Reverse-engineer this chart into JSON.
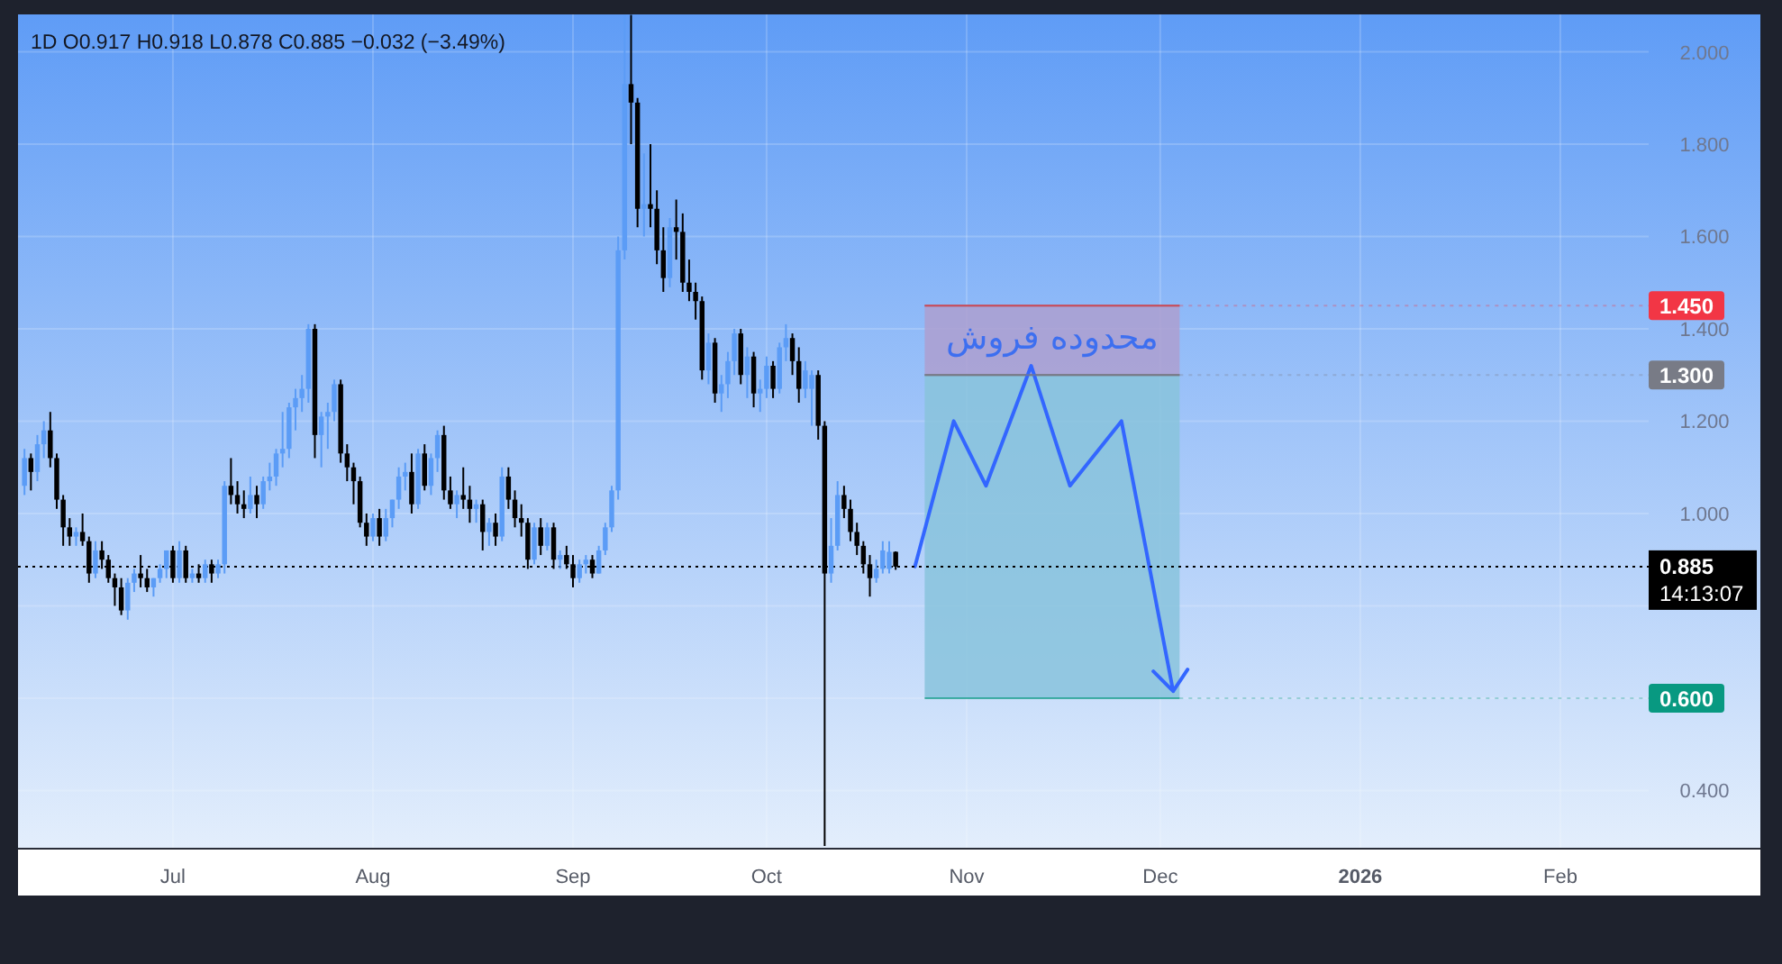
{
  "chart_data": {
    "type": "candlestick",
    "title": "1D  O0.917 H0.918 L0.878 C0.885 −0.032 (−3.49%)",
    "x": [
      "2025-06-08",
      "2025-06-09",
      "2025-06-10",
      "2025-06-11",
      "2025-06-12",
      "2025-06-13",
      "2025-06-14",
      "2025-06-15",
      "2025-06-16",
      "2025-06-17",
      "2025-06-18",
      "2025-06-19",
      "2025-06-20",
      "2025-06-21",
      "2025-06-22",
      "2025-06-23",
      "2025-06-24",
      "2025-06-25",
      "2025-06-26",
      "2025-06-27",
      "2025-06-28",
      "2025-06-29",
      "2025-06-30",
      "2025-07-01",
      "2025-07-02",
      "2025-07-03",
      "2025-07-04",
      "2025-07-05",
      "2025-07-06",
      "2025-07-07",
      "2025-07-08",
      "2025-07-09",
      "2025-07-10",
      "2025-07-11",
      "2025-07-12",
      "2025-07-13",
      "2025-07-14",
      "2025-07-15",
      "2025-07-16",
      "2025-07-17",
      "2025-07-18",
      "2025-07-19",
      "2025-07-20",
      "2025-07-21",
      "2025-07-22",
      "2025-07-23",
      "2025-07-24",
      "2025-07-25",
      "2025-07-26",
      "2025-07-27",
      "2025-07-28",
      "2025-07-29",
      "2025-07-30",
      "2025-07-31",
      "2025-08-01",
      "2025-08-02",
      "2025-08-03",
      "2025-08-04",
      "2025-08-05",
      "2025-08-06",
      "2025-08-07",
      "2025-08-08",
      "2025-08-09",
      "2025-08-10",
      "2025-08-11",
      "2025-08-12",
      "2025-08-13",
      "2025-08-14",
      "2025-08-15",
      "2025-08-16",
      "2025-08-17",
      "2025-08-18",
      "2025-08-19",
      "2025-08-20",
      "2025-08-21",
      "2025-08-22",
      "2025-08-23",
      "2025-08-24",
      "2025-08-25",
      "2025-08-26",
      "2025-08-27",
      "2025-08-28",
      "2025-08-29",
      "2025-08-30",
      "2025-08-31",
      "2025-09-01",
      "2025-09-02",
      "2025-09-03",
      "2025-09-04",
      "2025-09-05",
      "2025-09-06",
      "2025-09-07",
      "2025-09-08",
      "2025-09-09",
      "2025-09-10",
      "2025-09-11",
      "2025-09-12",
      "2025-09-13",
      "2025-09-14",
      "2025-09-15",
      "2025-09-16",
      "2025-09-17",
      "2025-09-18",
      "2025-09-19",
      "2025-09-20",
      "2025-09-21",
      "2025-09-22",
      "2025-09-23",
      "2025-09-24",
      "2025-09-25",
      "2025-09-26",
      "2025-09-27",
      "2025-09-28",
      "2025-09-29",
      "2025-09-30",
      "2025-10-01",
      "2025-10-02",
      "2025-10-03",
      "2025-10-04",
      "2025-10-05",
      "2025-10-06",
      "2025-10-07",
      "2025-10-08",
      "2025-10-09",
      "2025-10-10",
      "2025-10-11",
      "2025-10-12",
      "2025-10-13",
      "2025-10-14",
      "2025-10-15",
      "2025-10-16",
      "2025-10-17",
      "2025-10-18",
      "2025-10-19",
      "2025-10-20",
      "2025-10-21"
    ],
    "ohlc": [
      [
        1.06,
        1.14,
        1.04,
        1.12
      ],
      [
        1.12,
        1.13,
        1.05,
        1.09
      ],
      [
        1.09,
        1.17,
        1.07,
        1.15
      ],
      [
        1.15,
        1.2,
        1.12,
        1.18
      ],
      [
        1.18,
        1.22,
        1.1,
        1.12
      ],
      [
        1.12,
        1.13,
        1.01,
        1.03
      ],
      [
        1.03,
        1.04,
        0.93,
        0.97
      ],
      [
        0.97,
        0.99,
        0.93,
        0.95
      ],
      [
        0.95,
        0.97,
        0.93,
        0.96
      ],
      [
        0.96,
        1.0,
        0.93,
        0.94
      ],
      [
        0.94,
        0.95,
        0.85,
        0.87
      ],
      [
        0.87,
        0.94,
        0.86,
        0.92
      ],
      [
        0.92,
        0.94,
        0.88,
        0.9
      ],
      [
        0.9,
        0.91,
        0.85,
        0.86
      ],
      [
        0.86,
        0.87,
        0.8,
        0.84
      ],
      [
        0.84,
        0.86,
        0.78,
        0.79
      ],
      [
        0.79,
        0.86,
        0.77,
        0.85
      ],
      [
        0.85,
        0.88,
        0.83,
        0.87
      ],
      [
        0.87,
        0.91,
        0.84,
        0.86
      ],
      [
        0.86,
        0.88,
        0.83,
        0.84
      ],
      [
        0.84,
        0.86,
        0.82,
        0.86
      ],
      [
        0.86,
        0.89,
        0.85,
        0.88
      ],
      [
        0.88,
        0.92,
        0.86,
        0.92
      ],
      [
        0.92,
        0.93,
        0.85,
        0.86
      ],
      [
        0.86,
        0.94,
        0.85,
        0.92
      ],
      [
        0.92,
        0.93,
        0.85,
        0.86
      ],
      [
        0.86,
        0.88,
        0.85,
        0.87
      ],
      [
        0.87,
        0.89,
        0.85,
        0.86
      ],
      [
        0.86,
        0.9,
        0.85,
        0.89
      ],
      [
        0.89,
        0.9,
        0.85,
        0.87
      ],
      [
        0.87,
        0.9,
        0.86,
        0.89
      ],
      [
        0.89,
        1.07,
        0.87,
        1.06
      ],
      [
        1.06,
        1.12,
        1.02,
        1.04
      ],
      [
        1.04,
        1.07,
        1.0,
        1.02
      ],
      [
        1.02,
        1.05,
        0.99,
        1.01
      ],
      [
        1.01,
        1.08,
        1.0,
        1.04
      ],
      [
        1.04,
        1.06,
        0.99,
        1.02
      ],
      [
        1.02,
        1.08,
        1.01,
        1.07
      ],
      [
        1.07,
        1.11,
        1.05,
        1.08
      ],
      [
        1.08,
        1.14,
        1.06,
        1.13
      ],
      [
        1.13,
        1.22,
        1.1,
        1.14
      ],
      [
        1.14,
        1.24,
        1.12,
        1.23
      ],
      [
        1.23,
        1.27,
        1.18,
        1.25
      ],
      [
        1.25,
        1.3,
        1.22,
        1.27
      ],
      [
        1.27,
        1.41,
        1.24,
        1.4
      ],
      [
        1.4,
        1.41,
        1.12,
        1.17
      ],
      [
        1.17,
        1.22,
        1.1,
        1.21
      ],
      [
        1.21,
        1.24,
        1.14,
        1.22
      ],
      [
        1.22,
        1.29,
        1.2,
        1.28
      ],
      [
        1.28,
        1.29,
        1.11,
        1.13
      ],
      [
        1.13,
        1.15,
        1.07,
        1.1
      ],
      [
        1.1,
        1.11,
        1.02,
        1.07
      ],
      [
        1.07,
        1.08,
        0.97,
        0.98
      ],
      [
        0.98,
        1.0,
        0.93,
        0.95
      ],
      [
        0.95,
        1.0,
        0.94,
        0.99
      ],
      [
        0.99,
        1.01,
        0.93,
        0.95
      ],
      [
        0.95,
        1.01,
        0.94,
        0.99
      ],
      [
        0.99,
        1.03,
        0.97,
        1.03
      ],
      [
        1.03,
        1.1,
        1.01,
        1.08
      ],
      [
        1.08,
        1.11,
        1.05,
        1.09
      ],
      [
        1.09,
        1.13,
        1.0,
        1.02
      ],
      [
        1.02,
        1.14,
        1.01,
        1.13
      ],
      [
        1.13,
        1.15,
        1.05,
        1.06
      ],
      [
        1.06,
        1.13,
        1.04,
        1.12
      ],
      [
        1.12,
        1.18,
        1.09,
        1.17
      ],
      [
        1.17,
        1.19,
        1.03,
        1.05
      ],
      [
        1.05,
        1.08,
        1.01,
        1.02
      ],
      [
        1.02,
        1.05,
        0.99,
        1.04
      ],
      [
        1.04,
        1.1,
        1.01,
        1.03
      ],
      [
        1.03,
        1.06,
        0.98,
        1.01
      ],
      [
        1.01,
        1.03,
        0.98,
        1.02
      ],
      [
        1.02,
        1.03,
        0.92,
        0.96
      ],
      [
        0.96,
        0.99,
        0.93,
        0.98
      ],
      [
        0.98,
        1.0,
        0.93,
        0.95
      ],
      [
        0.95,
        1.1,
        0.94,
        1.08
      ],
      [
        1.08,
        1.1,
        1.01,
        1.03
      ],
      [
        1.03,
        1.05,
        0.97,
        0.99
      ],
      [
        0.99,
        1.02,
        0.95,
        0.98
      ],
      [
        0.98,
        0.99,
        0.88,
        0.9
      ],
      [
        0.9,
        0.98,
        0.89,
        0.97
      ],
      [
        0.97,
        0.99,
        0.91,
        0.93
      ],
      [
        0.93,
        0.98,
        0.92,
        0.97
      ],
      [
        0.97,
        0.98,
        0.88,
        0.9
      ],
      [
        0.9,
        0.92,
        0.88,
        0.91
      ],
      [
        0.91,
        0.93,
        0.88,
        0.89
      ],
      [
        0.89,
        0.91,
        0.84,
        0.86
      ],
      [
        0.86,
        0.9,
        0.85,
        0.89
      ],
      [
        0.89,
        0.91,
        0.87,
        0.9
      ],
      [
        0.9,
        0.91,
        0.86,
        0.87
      ],
      [
        0.87,
        0.93,
        0.87,
        0.92
      ],
      [
        0.92,
        0.98,
        0.91,
        0.97
      ],
      [
        0.97,
        1.06,
        0.96,
        1.05
      ],
      [
        1.05,
        1.6,
        1.03,
        1.57
      ],
      [
        1.57,
        2.08,
        1.55,
        1.93
      ],
      [
        1.93,
        2.08,
        1.8,
        1.89
      ],
      [
        1.89,
        1.9,
        1.62,
        1.66
      ],
      [
        1.66,
        1.78,
        1.6,
        1.67
      ],
      [
        1.67,
        1.8,
        1.62,
        1.66
      ],
      [
        1.66,
        1.7,
        1.54,
        1.57
      ],
      [
        1.57,
        1.62,
        1.48,
        1.51
      ],
      [
        1.51,
        1.64,
        1.49,
        1.62
      ],
      [
        1.62,
        1.68,
        1.55,
        1.61
      ],
      [
        1.61,
        1.65,
        1.48,
        1.5
      ],
      [
        1.5,
        1.55,
        1.46,
        1.48
      ],
      [
        1.48,
        1.5,
        1.42,
        1.46
      ],
      [
        1.46,
        1.47,
        1.29,
        1.31
      ],
      [
        1.31,
        1.39,
        1.28,
        1.37
      ],
      [
        1.37,
        1.38,
        1.24,
        1.26
      ],
      [
        1.26,
        1.3,
        1.22,
        1.28
      ],
      [
        1.28,
        1.35,
        1.25,
        1.33
      ],
      [
        1.33,
        1.4,
        1.3,
        1.39
      ],
      [
        1.39,
        1.4,
        1.28,
        1.3
      ],
      [
        1.3,
        1.36,
        1.25,
        1.34
      ],
      [
        1.34,
        1.35,
        1.23,
        1.26
      ],
      [
        1.26,
        1.29,
        1.22,
        1.27
      ],
      [
        1.27,
        1.34,
        1.25,
        1.32
      ],
      [
        1.32,
        1.33,
        1.25,
        1.27
      ],
      [
        1.27,
        1.37,
        1.26,
        1.36
      ],
      [
        1.36,
        1.41,
        1.33,
        1.38
      ],
      [
        1.38,
        1.39,
        1.3,
        1.33
      ],
      [
        1.33,
        1.36,
        1.24,
        1.27
      ],
      [
        1.27,
        1.33,
        1.25,
        1.31
      ],
      [
        1.27,
        1.31,
        1.19,
        1.3
      ],
      [
        1.3,
        1.31,
        1.16,
        1.19
      ],
      [
        1.19,
        1.2,
        0.28,
        0.87
      ],
      [
        0.87,
        0.99,
        0.85,
        0.93
      ],
      [
        0.93,
        1.07,
        0.92,
        1.04
      ],
      [
        1.04,
        1.06,
        0.99,
        1.01
      ],
      [
        1.01,
        1.03,
        0.94,
        0.96
      ],
      [
        0.96,
        0.98,
        0.91,
        0.93
      ],
      [
        0.93,
        0.94,
        0.87,
        0.89
      ],
      [
        0.89,
        0.91,
        0.82,
        0.86
      ],
      [
        0.86,
        0.9,
        0.85,
        0.88
      ],
      [
        0.88,
        0.94,
        0.87,
        0.92
      ],
      [
        0.88,
        0.94,
        0.87,
        0.917
      ],
      [
        0.917,
        0.918,
        0.878,
        0.885
      ]
    ],
    "xlim": [
      "2025-06-07",
      "2026-03-04"
    ],
    "series": [
      {
        "type": "line",
        "color": "#3366ff",
        "x": [
          "2025-10-24",
          "2025-10-30",
          "2025-11-04",
          "2025-11-11",
          "2025-11-17",
          "2025-11-25",
          "2025-12-03"
        ],
        "values": [
          0.885,
          1.2,
          1.06,
          1.32,
          1.06,
          1.2,
          0.615
        ]
      }
    ],
    "xticks": [
      {
        "value": "2025-07-01",
        "label": "Jul"
      },
      {
        "value": "2025-08-01",
        "label": "Aug"
      },
      {
        "value": "2025-09-01",
        "label": "Sep"
      },
      {
        "value": "2025-10-01",
        "label": "Oct"
      },
      {
        "value": "2025-11-01",
        "label": "Nov"
      },
      {
        "value": "2025-12-01",
        "label": "Dec"
      },
      {
        "value": "2026-01-01",
        "label": "2026"
      },
      {
        "value": "2026-02-01",
        "label": "Feb"
      }
    ],
    "ylim": [
      0.274,
      2.081
    ],
    "yticks": [
      {
        "value": 0.4,
        "label": "0.400"
      },
      {
        "value": 0.6,
        "label": null
      },
      {
        "value": 0.8,
        "label": null
      },
      {
        "value": 1.0,
        "label": "1.000"
      },
      {
        "value": 1.2,
        "label": "1.200"
      },
      {
        "value": 1.4,
        "label": "1.400"
      },
      {
        "value": 1.6,
        "label": "1.600"
      },
      {
        "value": 1.8,
        "label": "1.800"
      },
      {
        "value": 2.0,
        "label": "2.000"
      }
    ],
    "grid": true,
    "ref_lines": [
      {
        "axis": "y",
        "value": 0.885,
        "label": "0.885",
        "color": "#000000",
        "line_style": "dotted"
      },
      {
        "axis": "y",
        "value": 1.45,
        "label": "1.450",
        "color": "#f23645"
      },
      {
        "axis": "y",
        "value": 1.3,
        "label": "1.300",
        "color": "#787b86"
      },
      {
        "axis": "y",
        "value": 0.6,
        "label": "0.600",
        "color": "#089981"
      }
    ],
    "bands": [
      {
        "axis": "y",
        "from": 1.3,
        "to": 1.45,
        "label": "محدوده فروش",
        "color": "#ad9fd0"
      },
      {
        "axis": "y",
        "from": 0.6,
        "to": 1.3,
        "color": "#88c3dc"
      }
    ],
    "annotations": [
      "14:13:07"
    ]
  }
}
